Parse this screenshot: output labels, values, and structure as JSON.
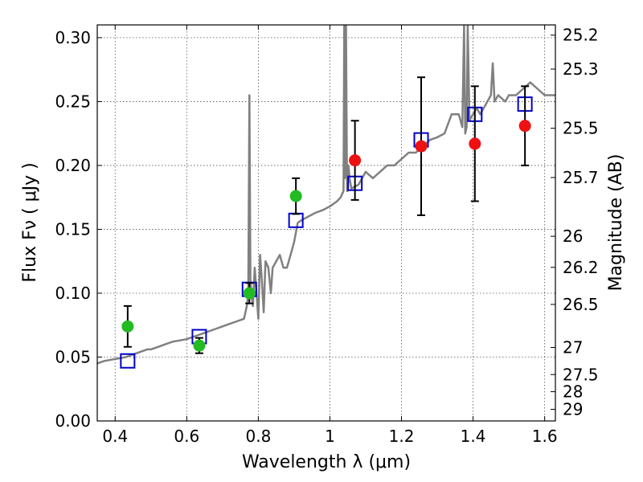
{
  "chart_data": {
    "type": "scatter",
    "title": "",
    "xlabel": "Wavelength  λ (μm)",
    "ylabel": "Flux  Fν  ( μJy )",
    "y2label": "Magnitude (AB)",
    "xlim": [
      0.35,
      1.63
    ],
    "ylim": [
      0.0,
      0.31
    ],
    "grid": true,
    "x_ticks": [
      0.4,
      0.6,
      0.8,
      1.0,
      1.2,
      1.4,
      1.6
    ],
    "x_tick_labels": [
      "0.4",
      "0.6",
      "0.8",
      "1",
      "1.2",
      "1.4",
      "1.6"
    ],
    "y_ticks": [
      0.0,
      0.05,
      0.1,
      0.15,
      0.2,
      0.25,
      0.3
    ],
    "y_tick_labels": [
      "0.00",
      "0.05",
      "0.10",
      "0.15",
      "0.20",
      "0.25",
      "0.30"
    ],
    "y2_ticks": [
      25.2,
      25.3,
      25.5,
      25.7,
      26,
      26.2,
      26.5,
      27,
      27.5,
      28,
      29
    ],
    "y2_tick_labels": [
      "25.2",
      "25.3",
      "25.5",
      "25.7",
      "26",
      "26.2",
      "26.5",
      "27",
      "27.5",
      "28",
      "29"
    ],
    "series": [
      {
        "kind": "line",
        "color": "#808080",
        "x": [
          0.35,
          0.37,
          0.39,
          0.41,
          0.43,
          0.45,
          0.47,
          0.49,
          0.5,
          0.52,
          0.54,
          0.56,
          0.58,
          0.6,
          0.62,
          0.64,
          0.66,
          0.68,
          0.7,
          0.72,
          0.74,
          0.76,
          0.768,
          0.772,
          0.775,
          0.778,
          0.781,
          0.785,
          0.79,
          0.8,
          0.805,
          0.81,
          0.815,
          0.82,
          0.828,
          0.835,
          0.84,
          0.85,
          0.86,
          0.87,
          0.88,
          0.89,
          0.9,
          0.91,
          0.92,
          0.94,
          0.96,
          0.98,
          1.0,
          1.02,
          1.03,
          1.038,
          1.04,
          1.042,
          1.045,
          1.048,
          1.05,
          1.052,
          1.055,
          1.06,
          1.08,
          1.1,
          1.12,
          1.14,
          1.16,
          1.18,
          1.2,
          1.22,
          1.24,
          1.26,
          1.28,
          1.3,
          1.32,
          1.34,
          1.36,
          1.37,
          1.375,
          1.378,
          1.382,
          1.385,
          1.39,
          1.395,
          1.4,
          1.41,
          1.42,
          1.44,
          1.45,
          1.455,
          1.46,
          1.47,
          1.49,
          1.5,
          1.52,
          1.54,
          1.56,
          1.58,
          1.6,
          1.63
        ],
        "y": [
          0.045,
          0.047,
          0.048,
          0.049,
          0.05,
          0.052,
          0.054,
          0.056,
          0.056,
          0.058,
          0.06,
          0.062,
          0.063,
          0.064,
          0.066,
          0.068,
          0.07,
          0.072,
          0.074,
          0.076,
          0.078,
          0.08,
          0.09,
          0.1,
          0.255,
          0.11,
          0.098,
          0.09,
          0.12,
          0.08,
          0.13,
          0.11,
          0.085,
          0.125,
          0.12,
          0.1,
          0.12,
          0.125,
          0.13,
          0.12,
          0.12,
          0.13,
          0.14,
          0.155,
          0.157,
          0.16,
          0.163,
          0.165,
          0.168,
          0.172,
          0.175,
          0.18,
          0.31,
          0.19,
          0.31,
          0.18,
          0.18,
          0.2,
          0.19,
          0.182,
          0.185,
          0.195,
          0.19,
          0.195,
          0.2,
          0.2,
          0.205,
          0.21,
          0.21,
          0.215,
          0.22,
          0.222,
          0.225,
          0.24,
          0.24,
          0.23,
          0.31,
          0.225,
          0.23,
          0.31,
          0.235,
          0.238,
          0.24,
          0.245,
          0.24,
          0.25,
          0.255,
          0.28,
          0.25,
          0.255,
          0.25,
          0.255,
          0.255,
          0.26,
          0.265,
          0.26,
          0.255,
          0.255
        ]
      },
      {
        "kind": "open-square",
        "color": "#0000cc",
        "x": [
          0.435,
          0.635,
          0.775,
          0.905,
          1.07,
          1.255,
          1.405,
          1.545
        ],
        "y": [
          0.047,
          0.066,
          0.103,
          0.157,
          0.186,
          0.22,
          0.24,
          0.248
        ]
      },
      {
        "kind": "filled-circle",
        "color": "#22bb22",
        "x": [
          0.435,
          0.635,
          0.775,
          0.905
        ],
        "y": [
          0.074,
          0.059,
          0.1,
          0.176
        ],
        "yerr": [
          0.016,
          0.006,
          0.008,
          0.014
        ]
      },
      {
        "kind": "filled-circle",
        "color": "#ee1111",
        "x": [
          1.07,
          1.255,
          1.405,
          1.545
        ],
        "y": [
          0.204,
          0.215,
          0.217,
          0.231
        ],
        "yerr": [
          0.031,
          0.054,
          0.045,
          0.031
        ]
      }
    ]
  }
}
